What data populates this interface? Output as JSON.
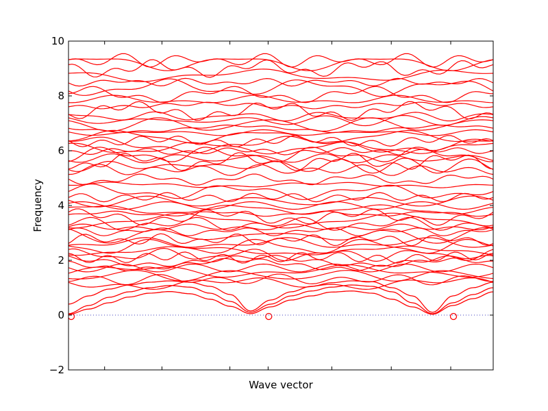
{
  "chart_data": {
    "type": "line",
    "title": "",
    "xlabel": "Wave vector",
    "ylabel": "Frequency",
    "ylim": [
      -2,
      10
    ],
    "y_ticks": [
      -2,
      0,
      2,
      4,
      6,
      8,
      10
    ],
    "y_tick_labels": [
      "−2",
      "0",
      "2",
      "4",
      "6",
      "8",
      "10"
    ],
    "x_range": [
      0,
      1
    ],
    "x_ticks": [
      0.085,
      0.22,
      0.38,
      0.47,
      0.62,
      0.76,
      0.9
    ],
    "path_points": [
      0,
      0.465,
      0.9
    ],
    "zero_line": {
      "y": 0,
      "color": "#3f3fbf",
      "style": "dotted"
    },
    "line_color": "#ff0000",
    "legend": "none",
    "grid": false,
    "acoustic_modes": [
      {
        "name": "",
        "y": [
          0.02,
          0.22,
          0.45,
          0.66,
          0.8,
          0.86,
          0.78,
          0.58,
          0.32,
          0.05,
          0.3,
          0.55,
          0.7,
          0.84,
          0.88,
          0.8,
          0.58,
          0.3,
          0.03,
          0.35,
          0.6,
          0.85
        ]
      },
      {
        "name": "",
        "y": [
          0.05,
          0.35,
          0.65,
          0.85,
          1.0,
          1.08,
          1.02,
          0.8,
          0.5,
          0.1,
          0.4,
          0.7,
          0.88,
          1.02,
          1.1,
          1.05,
          0.85,
          0.45,
          0.05,
          0.45,
          0.75,
          1.0
        ]
      },
      {
        "name": "",
        "y": [
          0.4,
          0.7,
          0.95,
          1.1,
          1.2,
          1.25,
          1.2,
          1.05,
          0.75,
          0.15,
          0.55,
          0.85,
          1.05,
          1.18,
          1.25,
          1.22,
          1.0,
          0.7,
          0.1,
          0.7,
          1.0,
          1.2
        ]
      }
    ],
    "optical_band_centers": [
      1.15,
      1.3,
      1.45,
      1.6,
      1.72,
      1.85,
      1.98,
      2.1,
      2.2,
      2.35,
      2.5,
      2.62,
      2.75,
      2.9,
      3.05,
      3.2,
      3.32,
      3.45,
      3.58,
      3.7,
      3.85,
      4.0,
      4.15,
      4.3,
      4.5,
      4.75,
      4.95,
      5.3,
      5.45,
      5.6,
      5.72,
      5.85,
      5.98,
      6.1,
      6.22,
      6.35,
      6.5,
      6.65,
      6.8,
      6.95,
      7.1,
      7.25,
      7.45,
      7.65,
      7.85,
      8.05,
      8.3,
      8.5,
      8.75,
      9.0,
      9.2,
      9.3
    ]
  }
}
